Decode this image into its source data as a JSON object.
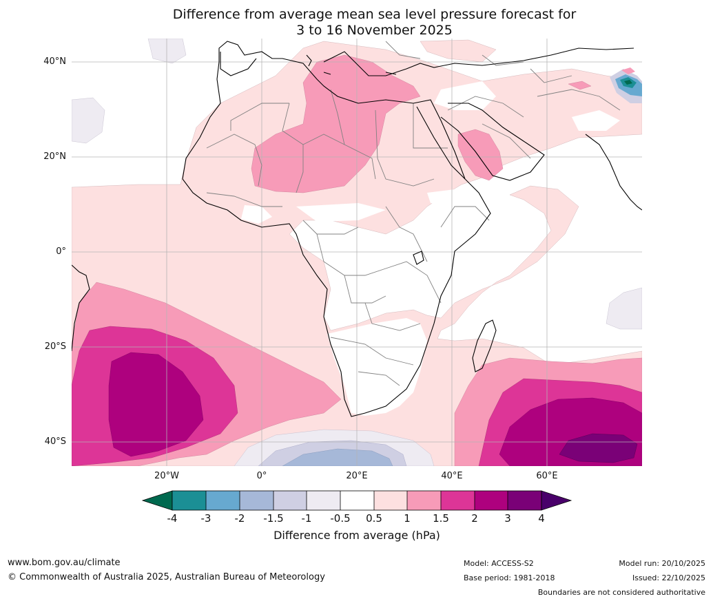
{
  "title": {
    "line1": "Difference from average mean sea level pressure forecast for",
    "line2": "3 to 16 November 2025"
  },
  "axes": {
    "latitude_labels": [
      "40°N",
      "20°N",
      "0°",
      "20°S",
      "40°S"
    ],
    "longitude_labels": [
      "20°W",
      "0°",
      "20°E",
      "40°E",
      "60°E"
    ]
  },
  "colorbar": {
    "title": "Difference from average (hPa)",
    "tick_labels": [
      "-4",
      "-3",
      "-2",
      "-1.5",
      "-1",
      "-0.5",
      "0.5",
      "1",
      "1.5",
      "2",
      "3",
      "4"
    ],
    "colors": {
      "below_-4": "#00694f",
      "-4_-3": "#1b8f95",
      "-3_-2": "#67a9d0",
      "-2_-1.5": "#a6b8d8",
      "-1.5_-1": "#cfcfe3",
      "-1_-0.5": "#eeebf2",
      "-0.5_0.5": "#ffffff",
      "0.5_1": "#fde0e0",
      "1_1.5": "#f79bb8",
      "1.5_2": "#dd3597",
      "2_3": "#ae017e",
      "3_4": "#7a0177",
      "above_4": "#49006a"
    }
  },
  "footer": {
    "website": "www.bom.gov.au/climate",
    "copyright": "© Commonwealth of Australia 2025, Australian Bureau of Meteorology",
    "model": "Model: ACCESS-S2",
    "base_period": "Base period: 1981-2018",
    "model_run": "Model run: 20/10/2025",
    "issued": "Issued: 22/10/2025",
    "disclaimer": "Boundaries are not considered authoritative"
  }
}
